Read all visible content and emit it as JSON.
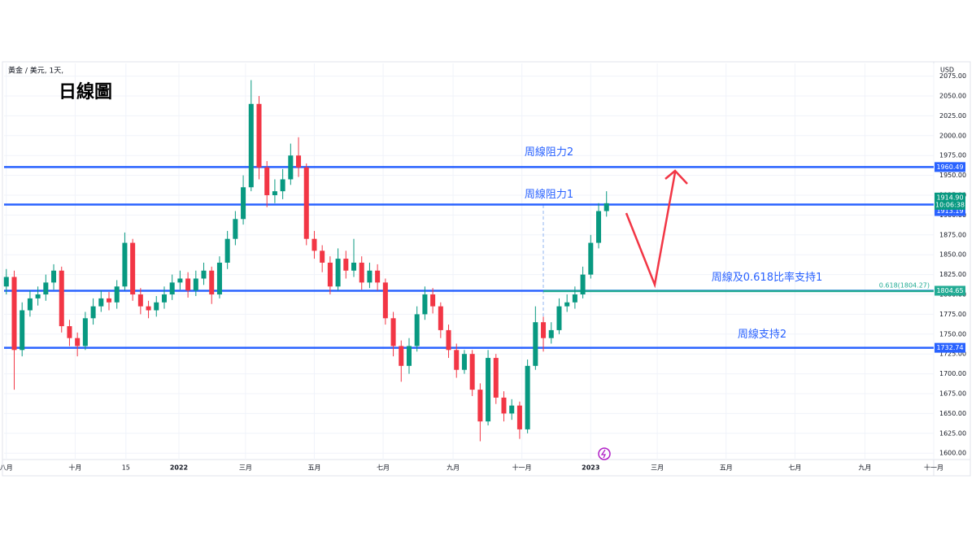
{
  "chart_data": {
    "type": "candlestick",
    "title": "日線圖",
    "header": "黃金 / 美元, 1天,",
    "currency": "USD",
    "up_color": "#089981",
    "down_color": "#f23645",
    "level_color": "#2962ff",
    "fib_color": "#22ab94",
    "grid": true,
    "x": [
      0,
      7,
      14,
      21,
      28,
      35,
      42,
      49,
      56,
      63,
      70,
      77,
      84,
      91,
      98,
      105,
      112,
      119,
      126,
      133,
      140,
      147,
      154,
      161,
      168,
      175,
      182,
      189,
      196,
      203,
      210,
      217,
      224,
      231,
      238,
      245,
      252,
      259,
      266,
      273,
      280,
      287,
      294,
      301,
      308,
      315,
      322,
      329,
      336,
      343,
      350,
      357,
      364,
      371,
      378,
      385,
      392,
      399,
      406,
      413,
      420,
      427,
      434,
      441,
      448,
      455,
      462,
      469,
      476,
      483,
      490,
      497,
      504,
      511,
      518,
      525,
      532
    ],
    "open": [
      1810,
      1822,
      1730,
      1780,
      1795,
      1800,
      1815,
      1830,
      1760,
      1745,
      1735,
      1770,
      1785,
      1795,
      1790,
      1810,
      1865,
      1800,
      1785,
      1780,
      1790,
      1800,
      1815,
      1820,
      1805,
      1820,
      1830,
      1800,
      1840,
      1870,
      1895,
      1935,
      2040,
      1960,
      1925,
      1930,
      1945,
      1975,
      1960,
      1870,
      1855,
      1840,
      1810,
      1845,
      1830,
      1840,
      1815,
      1830,
      1815,
      1770,
      1735,
      1710,
      1735,
      1775,
      1800,
      1785,
      1755,
      1730,
      1705,
      1725,
      1680,
      1640,
      1720,
      1670,
      1650,
      1660,
      1630,
      1710,
      1765,
      1745,
      1755,
      1785,
      1790,
      1800,
      1825,
      1865,
      1905
    ],
    "high": [
      1832,
      1830,
      1790,
      1805,
      1810,
      1825,
      1838,
      1835,
      1768,
      1752,
      1778,
      1795,
      1805,
      1803,
      1818,
      1878,
      1870,
      1808,
      1792,
      1798,
      1810,
      1825,
      1830,
      1828,
      1830,
      1840,
      1835,
      1848,
      1880,
      1905,
      1950,
      2070,
      2050,
      1968,
      1945,
      1958,
      1990,
      1998,
      1965,
      1880,
      1862,
      1848,
      1858,
      1855,
      1870,
      1848,
      1840,
      1838,
      1820,
      1778,
      1742,
      1745,
      1785,
      1810,
      1808,
      1790,
      1762,
      1738,
      1730,
      1730,
      1688,
      1730,
      1725,
      1678,
      1668,
      1665,
      1718,
      1785,
      1772,
      1765,
      1795,
      1800,
      1810,
      1835,
      1875,
      1915,
      1930
    ],
    "low": [
      1800,
      1680,
      1722,
      1772,
      1786,
      1792,
      1806,
      1752,
      1735,
      1722,
      1730,
      1762,
      1778,
      1780,
      1782,
      1805,
      1792,
      1775,
      1770,
      1772,
      1782,
      1793,
      1806,
      1796,
      1798,
      1812,
      1788,
      1795,
      1832,
      1862,
      1888,
      1930,
      1945,
      1910,
      1915,
      1920,
      1938,
      1948,
      1862,
      1845,
      1828,
      1800,
      1805,
      1820,
      1822,
      1806,
      1808,
      1805,
      1762,
      1722,
      1690,
      1700,
      1728,
      1768,
      1776,
      1745,
      1720,
      1695,
      1700,
      1672,
      1615,
      1635,
      1662,
      1640,
      1642,
      1618,
      1625,
      1705,
      1728,
      1738,
      1750,
      1778,
      1782,
      1795,
      1820,
      1858,
      1898
    ],
    "close": [
      1822,
      1730,
      1780,
      1795,
      1800,
      1815,
      1830,
      1760,
      1745,
      1735,
      1770,
      1785,
      1795,
      1790,
      1810,
      1865,
      1800,
      1785,
      1780,
      1790,
      1800,
      1815,
      1820,
      1805,
      1820,
      1830,
      1800,
      1840,
      1870,
      1895,
      1935,
      2040,
      1960,
      1925,
      1930,
      1945,
      1975,
      1960,
      1870,
      1855,
      1840,
      1810,
      1845,
      1830,
      1840,
      1815,
      1830,
      1815,
      1770,
      1735,
      1710,
      1735,
      1775,
      1800,
      1785,
      1755,
      1730,
      1705,
      1725,
      1680,
      1640,
      1720,
      1670,
      1650,
      1660,
      1630,
      1710,
      1765,
      1745,
      1755,
      1785,
      1790,
      1800,
      1825,
      1865,
      1905,
      1914.9
    ],
    "xlim": [
      -2,
      822
    ],
    "xticks": [
      {
        "value": 0,
        "label": "八月"
      },
      {
        "value": 61,
        "label": "十月"
      },
      {
        "value": 106,
        "label": "15"
      },
      {
        "value": 153,
        "label": "2022"
      },
      {
        "value": 212,
        "label": "三月"
      },
      {
        "value": 273,
        "label": "五月"
      },
      {
        "value": 334,
        "label": "七月"
      },
      {
        "value": 396,
        "label": "九月"
      },
      {
        "value": 457,
        "label": "十一月"
      },
      {
        "value": 518,
        "label": "2023"
      },
      {
        "value": 577,
        "label": "三月"
      },
      {
        "value": 638,
        "label": "五月"
      },
      {
        "value": 699,
        "label": "七月"
      },
      {
        "value": 761,
        "label": "九月"
      },
      {
        "value": 822,
        "label": "十一月"
      }
    ],
    "ylim": [
      1592,
      2091
    ],
    "yticks": [
      {
        "value": 1600,
        "label": "1600.00"
      },
      {
        "value": 1625,
        "label": "1625.00"
      },
      {
        "value": 1650,
        "label": "1650.00"
      },
      {
        "value": 1675,
        "label": "1675.00"
      },
      {
        "value": 1700,
        "label": "1700.00"
      },
      {
        "value": 1725,
        "label": "1725.00"
      },
      {
        "value": 1750,
        "label": "1750.00"
      },
      {
        "value": 1775,
        "label": "1775.00"
      },
      {
        "value": 1800,
        "label": "1800.00"
      },
      {
        "value": 1825,
        "label": "1825.00"
      },
      {
        "value": 1850,
        "label": "1850.00"
      },
      {
        "value": 1875,
        "label": "1875.00"
      },
      {
        "value": 1900,
        "label": "1900.00"
      },
      {
        "value": 1925,
        "label": "1925.00"
      },
      {
        "value": 1950,
        "label": "1950.00"
      },
      {
        "value": 1975,
        "label": "1975.00"
      },
      {
        "value": 2000,
        "label": "2000.00"
      },
      {
        "value": 2025,
        "label": "2025.00"
      },
      {
        "value": 2050,
        "label": "2050.00"
      },
      {
        "value": 2075,
        "label": "2075.00"
      }
    ],
    "levels": [
      {
        "name": "周線阻力2",
        "value": 1960.49
      },
      {
        "name": "周線阻力1",
        "value": 1913.19
      },
      {
        "name": "周線及0.618比率支持1",
        "value": 1804.65
      },
      {
        "name": "周線支持2",
        "value": 1732.74
      }
    ],
    "fib": {
      "label": "0.618(1804.27)",
      "value": 1804.27
    },
    "last_price": {
      "value": 1914.9,
      "label": "1914.90",
      "countdown": "10:06:38"
    }
  }
}
